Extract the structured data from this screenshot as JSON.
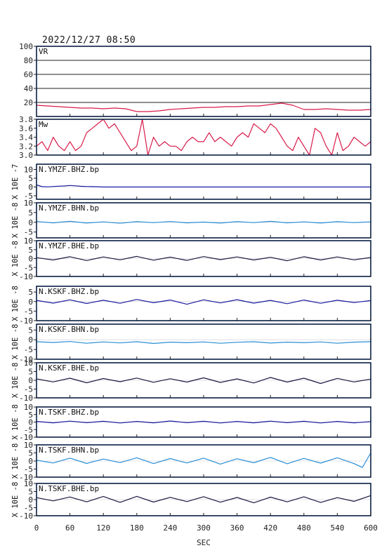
{
  "header": {
    "datetime": "2022/12/27  08:50"
  },
  "colors": {
    "frame": "#0a1f44",
    "vr_line": "#d81b4a",
    "mw_line": "#d81b4a",
    "dark_blue": "#1a1aa0",
    "light_blue": "#2a8fd6",
    "black_trace": "#1a1a40"
  },
  "chart_data": [
    {
      "type": "line",
      "name": "VR",
      "label": "VR",
      "x": [
        0,
        20,
        40,
        60,
        80,
        100,
        120,
        140,
        160,
        180,
        200,
        220,
        240,
        260,
        280,
        300,
        320,
        340,
        360,
        380,
        400,
        420,
        440,
        460,
        480,
        500,
        520,
        540,
        560,
        580,
        600
      ],
      "y": [
        16,
        15,
        14,
        13,
        12,
        12,
        11,
        12,
        11,
        7,
        7,
        8,
        10,
        11,
        12,
        13,
        13,
        14,
        14,
        15,
        15,
        17,
        19,
        16,
        10,
        10,
        11,
        10,
        9,
        9,
        10
      ],
      "ylim": [
        0,
        100
      ],
      "yticks": [
        20,
        40,
        60,
        80,
        100
      ],
      "grid": true
    },
    {
      "type": "line",
      "name": "Mw",
      "label": "Mw",
      "x": [
        0,
        10,
        20,
        30,
        40,
        50,
        60,
        70,
        80,
        90,
        100,
        110,
        120,
        130,
        140,
        150,
        160,
        170,
        180,
        190,
        200,
        210,
        220,
        230,
        240,
        250,
        260,
        270,
        280,
        290,
        300,
        310,
        320,
        330,
        340,
        350,
        360,
        370,
        380,
        390,
        400,
        410,
        420,
        430,
        440,
        450,
        460,
        470,
        480,
        490,
        500,
        510,
        520,
        530,
        540,
        550,
        560,
        570,
        580,
        590,
        600
      ],
      "y": [
        3.2,
        3.3,
        3.1,
        3.4,
        3.2,
        3.1,
        3.3,
        3.1,
        3.2,
        3.5,
        3.6,
        3.7,
        3.8,
        3.6,
        3.7,
        3.5,
        3.3,
        3.1,
        3.2,
        3.8,
        3.0,
        3.4,
        3.2,
        3.3,
        3.2,
        3.2,
        3.1,
        3.3,
        3.4,
        3.3,
        3.3,
        3.5,
        3.3,
        3.4,
        3.3,
        3.2,
        3.4,
        3.5,
        3.4,
        3.7,
        3.6,
        3.5,
        3.7,
        3.6,
        3.4,
        3.2,
        3.1,
        3.4,
        3.2,
        3.0,
        3.6,
        3.5,
        3.2,
        3.0,
        3.5,
        3.1,
        3.2,
        3.4,
        3.3,
        3.2,
        3.3
      ],
      "ylim": [
        3.0,
        3.8
      ],
      "yticks": [
        3.0,
        3.2,
        3.4,
        3.6,
        3.8
      ]
    },
    {
      "type": "line",
      "name": "N.YMZF.BHZ.bp",
      "label": "N.YMZF.BHZ.bp",
      "unit": "X 10E -7",
      "ylim": [
        -7,
        13
      ],
      "yticks": [
        -5,
        0,
        5,
        10
      ],
      "color_key": "dark_blue",
      "x": [
        0,
        10,
        20,
        30,
        40,
        50,
        60,
        70,
        80,
        90,
        100,
        120,
        160,
        200,
        300,
        400,
        500,
        600
      ],
      "y": [
        1.2,
        0.2,
        0.1,
        0.3,
        0.5,
        0.6,
        0.9,
        0.7,
        0.4,
        0.3,
        0.2,
        0,
        0,
        0,
        0,
        0,
        0,
        0
      ]
    },
    {
      "type": "line",
      "name": "N.YMZF.BHN.bp",
      "label": "N.YMZF.BHN.bp",
      "unit": "X 10E -8",
      "ylim": [
        -8,
        10
      ],
      "yticks": [
        -5,
        0,
        5,
        10
      ],
      "color_key": "light_blue",
      "x": [
        0,
        30,
        60,
        90,
        120,
        150,
        180,
        210,
        240,
        270,
        300,
        330,
        360,
        390,
        420,
        450,
        480,
        510,
        540,
        570,
        600
      ],
      "y": [
        0.4,
        -0.3,
        0.5,
        -0.4,
        0.2,
        -0.5,
        0.3,
        -0.2,
        0.4,
        -0.3,
        0.1,
        -0.4,
        0.3,
        -0.2,
        0.5,
        -0.3,
        0.2,
        -0.4,
        0.3,
        -0.2,
        0.2
      ]
    },
    {
      "type": "line",
      "name": "N.YMZF.BHE.bp",
      "label": "N.YMZF.BHE.bp",
      "unit": "X 10E -8",
      "ylim": [
        -10,
        10
      ],
      "yticks": [
        -10,
        -5,
        0,
        5,
        10
      ],
      "color_key": "black_trace",
      "x": [
        0,
        30,
        60,
        90,
        120,
        150,
        180,
        210,
        240,
        270,
        300,
        330,
        360,
        390,
        420,
        450,
        480,
        510,
        540,
        570,
        600
      ],
      "y": [
        0.5,
        -0.8,
        1.0,
        -1.1,
        0.9,
        -0.7,
        1.2,
        -0.9,
        0.8,
        -1.0,
        1.1,
        -0.6,
        0.9,
        -0.8,
        0.7,
        -1.2,
        1.0,
        -0.8,
        0.9,
        -0.7,
        0.6
      ]
    },
    {
      "type": "line",
      "name": "N.KSKF.BHZ.bp",
      "label": "N.KSKF.BHZ.bp",
      "unit": "X 10E -8",
      "ylim": [
        -10,
        8
      ],
      "yticks": [
        -10,
        -5,
        0,
        5
      ],
      "color_key": "dark_blue",
      "x": [
        0,
        30,
        60,
        90,
        120,
        150,
        180,
        210,
        240,
        270,
        300,
        330,
        360,
        390,
        420,
        450,
        480,
        510,
        540,
        570,
        600
      ],
      "y": [
        0.6,
        -0.8,
        0.9,
        -1.0,
        0.7,
        -0.9,
        1.1,
        -0.6,
        0.8,
        -1.4,
        0.9,
        -0.7,
        1.0,
        -0.8,
        0.6,
        -1.1,
        0.8,
        -0.9,
        0.7,
        -0.5,
        0.5
      ]
    },
    {
      "type": "line",
      "name": "N.KSKF.BHN.bp",
      "label": "N.KSKF.BHN.bp",
      "unit": "X 10E -8",
      "ylim": [
        -10,
        8
      ],
      "yticks": [
        -10,
        -5,
        0,
        5
      ],
      "color_key": "light_blue",
      "x": [
        0,
        30,
        60,
        90,
        120,
        150,
        180,
        210,
        240,
        270,
        300,
        330,
        360,
        390,
        420,
        450,
        480,
        510,
        540,
        570,
        600
      ],
      "y": [
        -1.0,
        -1.4,
        -0.9,
        -1.8,
        -1.1,
        -1.6,
        -1.0,
        -1.9,
        -1.2,
        -1.5,
        -1.1,
        -1.8,
        -1.3,
        -1.0,
        -1.7,
        -1.2,
        -1.5,
        -1.1,
        -1.8,
        -1.2,
        -1.0
      ]
    },
    {
      "type": "line",
      "name": "N.KSKF.BHE.bp",
      "label": "N.KSKF.BHE.bp",
      "unit": "X 10E -8",
      "ylim": [
        -10,
        10
      ],
      "yticks": [
        -10,
        -5,
        0,
        5,
        10
      ],
      "color_key": "black_trace",
      "x": [
        0,
        30,
        60,
        90,
        120,
        150,
        180,
        210,
        240,
        270,
        300,
        330,
        360,
        390,
        420,
        450,
        480,
        510,
        540,
        570,
        600
      ],
      "y": [
        0.8,
        -0.9,
        1.2,
        -1.4,
        1.0,
        -0.8,
        1.3,
        -1.1,
        0.9,
        -1.0,
        1.4,
        -1.2,
        0.8,
        -1.5,
        1.6,
        -1.0,
        1.2,
        -1.8,
        1.1,
        -0.9,
        0.7
      ]
    },
    {
      "type": "line",
      "name": "N.TSKF.BHZ.bp",
      "label": "N.TSKF.BHZ.bp",
      "unit": "X 10E -8",
      "ylim": [
        -10,
        10
      ],
      "yticks": [
        -10,
        -5,
        0,
        5,
        10
      ],
      "color_key": "dark_blue",
      "x": [
        0,
        30,
        60,
        90,
        120,
        150,
        180,
        210,
        240,
        270,
        300,
        330,
        360,
        390,
        420,
        450,
        480,
        510,
        540,
        570,
        600
      ],
      "y": [
        0.4,
        -0.5,
        0.6,
        -0.4,
        0.5,
        -0.6,
        0.4,
        -0.5,
        0.7,
        -0.4,
        0.5,
        -0.6,
        0.4,
        -0.5,
        0.6,
        -0.4,
        0.5,
        -0.6,
        0.4,
        -0.5,
        0.3
      ]
    },
    {
      "type": "line",
      "name": "N.TSKF.BHN.bp",
      "label": "N.TSKF.BHN.bp",
      "unit": "X 10E -8",
      "ylim": [
        -10,
        10
      ],
      "yticks": [
        -10,
        -5,
        0,
        5,
        10
      ],
      "color_key": "light_blue",
      "x": [
        0,
        30,
        60,
        90,
        120,
        150,
        180,
        210,
        240,
        270,
        300,
        330,
        360,
        390,
        420,
        450,
        480,
        510,
        540,
        570,
        585,
        600
      ],
      "y": [
        0.5,
        -1.2,
        1.8,
        -1.5,
        1.2,
        -1.0,
        2.0,
        -1.6,
        1.5,
        -1.2,
        1.8,
        -1.9,
        1.4,
        -1.1,
        2.2,
        -1.7,
        1.6,
        -1.3,
        2.0,
        -1.6,
        -4.0,
        5.0
      ]
    },
    {
      "type": "line",
      "name": "N.TSKF.BHE.bp",
      "label": "N.TSKF.BHE.bp",
      "unit": "X 10E -8",
      "ylim": [
        -10,
        10
      ],
      "yticks": [
        -10,
        -5,
        0,
        5,
        10
      ],
      "color_key": "black_trace",
      "x": [
        0,
        30,
        60,
        90,
        120,
        150,
        180,
        210,
        240,
        270,
        300,
        330,
        360,
        390,
        420,
        450,
        480,
        510,
        540,
        570,
        600
      ],
      "y": [
        1.2,
        -0.8,
        1.6,
        -1.4,
        1.9,
        -1.7,
        2.0,
        -1.5,
        1.4,
        -1.2,
        1.8,
        -1.6,
        1.3,
        -2.0,
        1.5,
        -1.4,
        1.7,
        -1.8,
        1.2,
        -1.1,
        2.5
      ]
    }
  ],
  "x_axis": {
    "xlim": [
      0,
      600
    ],
    "ticks": [
      "0",
      "60",
      "120",
      "180",
      "240",
      "300",
      "360",
      "420",
      "480",
      "540",
      "600"
    ],
    "label": "SEC"
  }
}
